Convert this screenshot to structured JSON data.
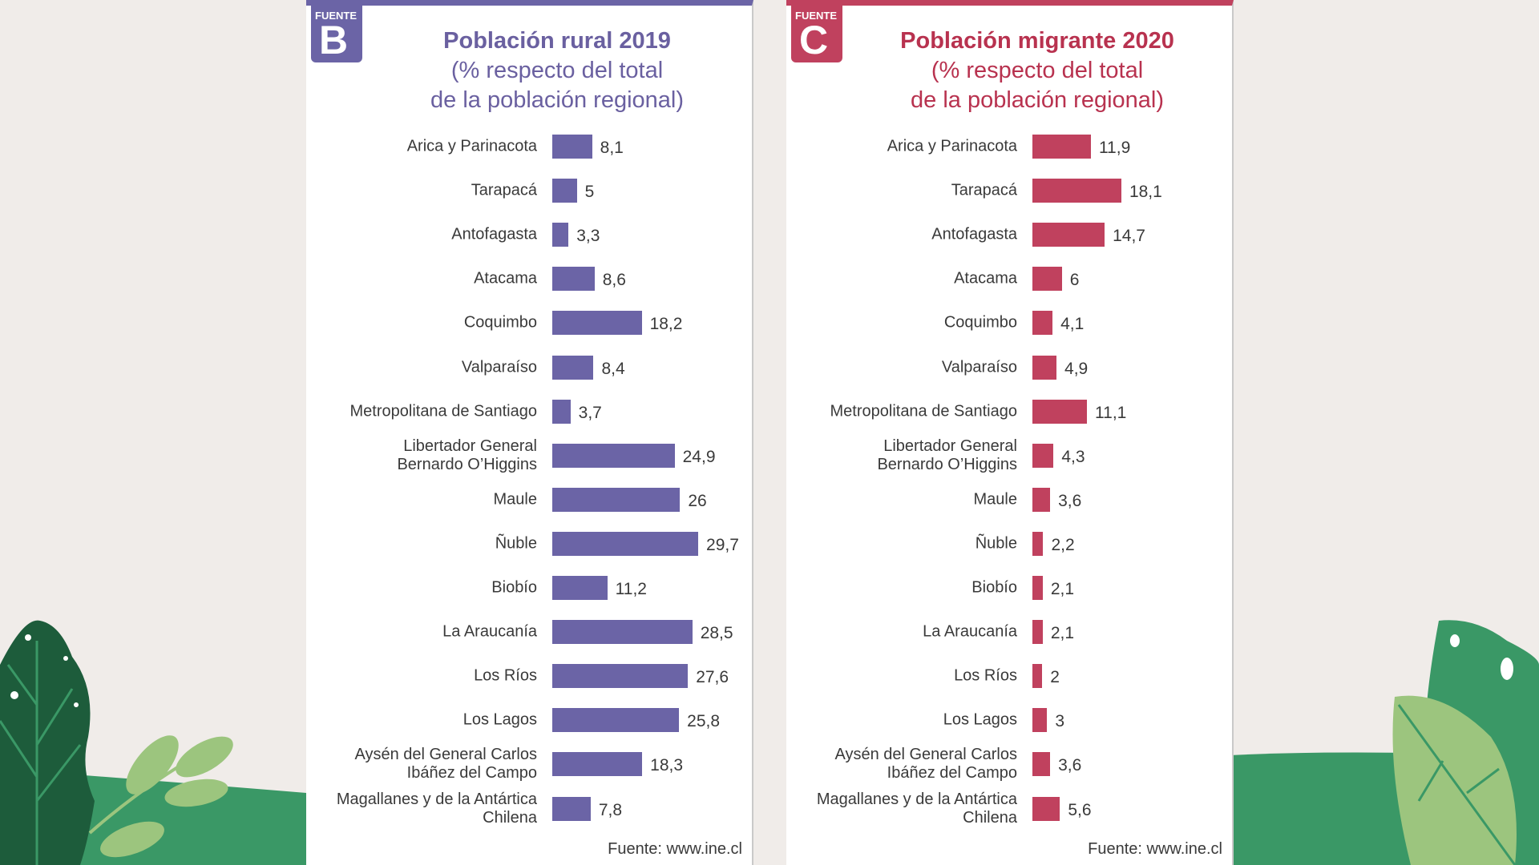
{
  "colors": {
    "background": "#f0ece9",
    "hill": "#3a9866",
    "leaf_dark": "#1d5c3b",
    "leaf_light": "#9cc57e",
    "fuente_b": "#6b64a6",
    "fuente_c": "#c0415e"
  },
  "chart_data": [
    {
      "type": "bar",
      "orientation": "horizontal",
      "badge_label": "FUENTE",
      "badge_letter": "B",
      "title": "Población rural 2019",
      "subtitle_1": "(% respecto del total",
      "subtitle_2": "de la población regional)",
      "color": "#6b64a6",
      "source": "Fuente: www.ine.cl",
      "categories": [
        "Arica y Parinacota",
        "Tarapacá",
        "Antofagasta",
        "Atacama",
        "Coquimbo",
        "Valparaíso",
        "Metropolitana de Santiago",
        "Libertador General\nBernardo O’Higgins",
        "Maule",
        "Ñuble",
        "Biobío",
        "La Araucanía",
        "Los Ríos",
        "Los Lagos",
        "Aysén del General Carlos\nIbáñez del Campo",
        "Magallanes y de la Antártica\nChilena"
      ],
      "values": [
        8.1,
        5,
        3.3,
        8.6,
        18.2,
        8.4,
        3.7,
        24.9,
        26,
        29.7,
        11.2,
        28.5,
        27.6,
        25.8,
        18.3,
        7.8
      ],
      "value_labels": [
        "8,1",
        "5",
        "3,3",
        "8,6",
        "18,2",
        "8,4",
        "3,7",
        "24,9",
        "26",
        "29,7",
        "11,2",
        "28,5",
        "27,6",
        "25,8",
        "18,3",
        "7,8"
      ]
    },
    {
      "type": "bar",
      "orientation": "horizontal",
      "badge_label": "FUENTE",
      "badge_letter": "C",
      "title": "Población migrante 2020",
      "subtitle_1": "(% respecto del total",
      "subtitle_2": "de la población regional)",
      "color": "#c0415e",
      "source": "Fuente: www.ine.cl",
      "categories": [
        "Arica y Parinacota",
        "Tarapacá",
        "Antofagasta",
        "Atacama",
        "Coquimbo",
        "Valparaíso",
        "Metropolitana de Santiago",
        "Libertador General\nBernardo O’Higgins",
        "Maule",
        "Ñuble",
        "Biobío",
        "La Araucanía",
        "Los Ríos",
        "Los Lagos",
        "Aysén del General Carlos\nIbáñez del Campo",
        "Magallanes y de la Antártica\nChilena"
      ],
      "values": [
        11.9,
        18.1,
        14.7,
        6,
        4.1,
        4.9,
        11.1,
        4.3,
        3.6,
        2.2,
        2.1,
        2.1,
        2,
        3,
        3.6,
        5.6
      ],
      "value_labels": [
        "11,9",
        "18,1",
        "14,7",
        "6",
        "4,1",
        "4,9",
        "11,1",
        "4,3",
        "3,6",
        "2,2",
        "2,1",
        "2,1",
        "2",
        "3",
        "3,6",
        "5,6"
      ]
    }
  ]
}
